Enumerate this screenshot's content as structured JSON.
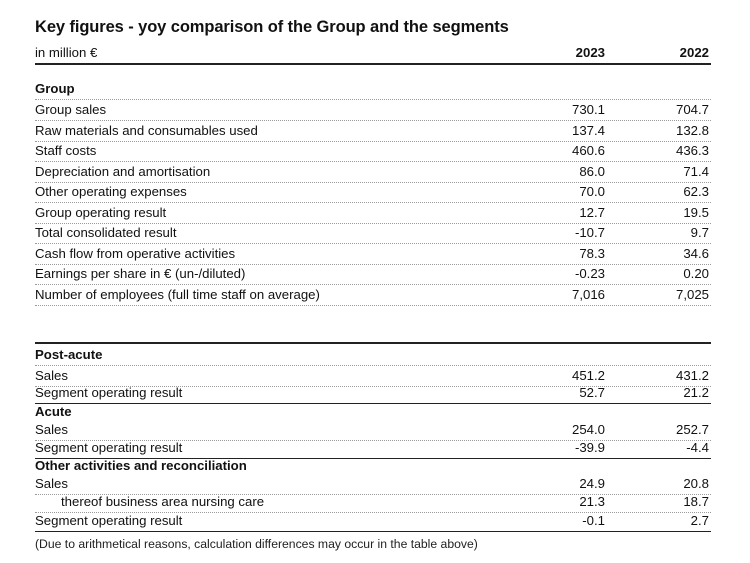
{
  "title": "Key figures - yoy comparison of the Group and the segments",
  "unit_label": "in million €",
  "years": [
    "2023",
    "2022"
  ],
  "sections": [
    {
      "heading": "Group",
      "rows": [
        {
          "label": "Group sales",
          "v2023": "730.1",
          "v2022": "704.7"
        },
        {
          "label": "Raw materials and consumables used",
          "v2023": "137.4",
          "v2022": "132.8"
        },
        {
          "label": "Staff costs",
          "v2023": "460.6",
          "v2022": "436.3"
        },
        {
          "label": "Depreciation and amortisation",
          "v2023": "86.0",
          "v2022": "71.4"
        },
        {
          "label": "Other operating expenses",
          "v2023": "70.0",
          "v2022": "62.3"
        },
        {
          "label": "Group operating result",
          "v2023": "12.7",
          "v2022": "19.5"
        },
        {
          "label": "Total consolidated result",
          "v2023": "-10.7",
          "v2022": "9.7"
        },
        {
          "label": "Cash flow from operative activities",
          "v2023": "78.3",
          "v2022": "34.6"
        },
        {
          "label": "Earnings per share in € (un-/diluted)",
          "v2023": "-0.23",
          "v2022": "0.20"
        },
        {
          "label": "Number of employees  (full time staff on average)",
          "v2023": "7,016",
          "v2022": "7,025"
        }
      ]
    },
    {
      "heading": "Post-acute",
      "rows": [
        {
          "label": "Sales",
          "v2023": "451.2",
          "v2022": "431.2"
        },
        {
          "label": "Segment operating result",
          "v2023": "52.7",
          "v2022": "21.2"
        }
      ]
    },
    {
      "heading": "Acute",
      "rows": [
        {
          "label": "Sales",
          "v2023": "254.0",
          "v2022": "252.7"
        },
        {
          "label": "Segment operating result",
          "v2023": "-39.9",
          "v2022": "-4.4"
        }
      ]
    },
    {
      "heading": "Other activities and reconciliation",
      "rows": [
        {
          "label": "Sales",
          "v2023": "24.9",
          "v2022": "20.8"
        },
        {
          "label": "thereof business area nursing care",
          "v2023": "21.3",
          "v2022": "18.7"
        },
        {
          "label": "Segment operating result",
          "v2023": "-0.1",
          "v2022": "2.7"
        }
      ]
    }
  ],
  "footnote": "(Due to arithmetical reasons, calculation differences may occur in the table above)"
}
